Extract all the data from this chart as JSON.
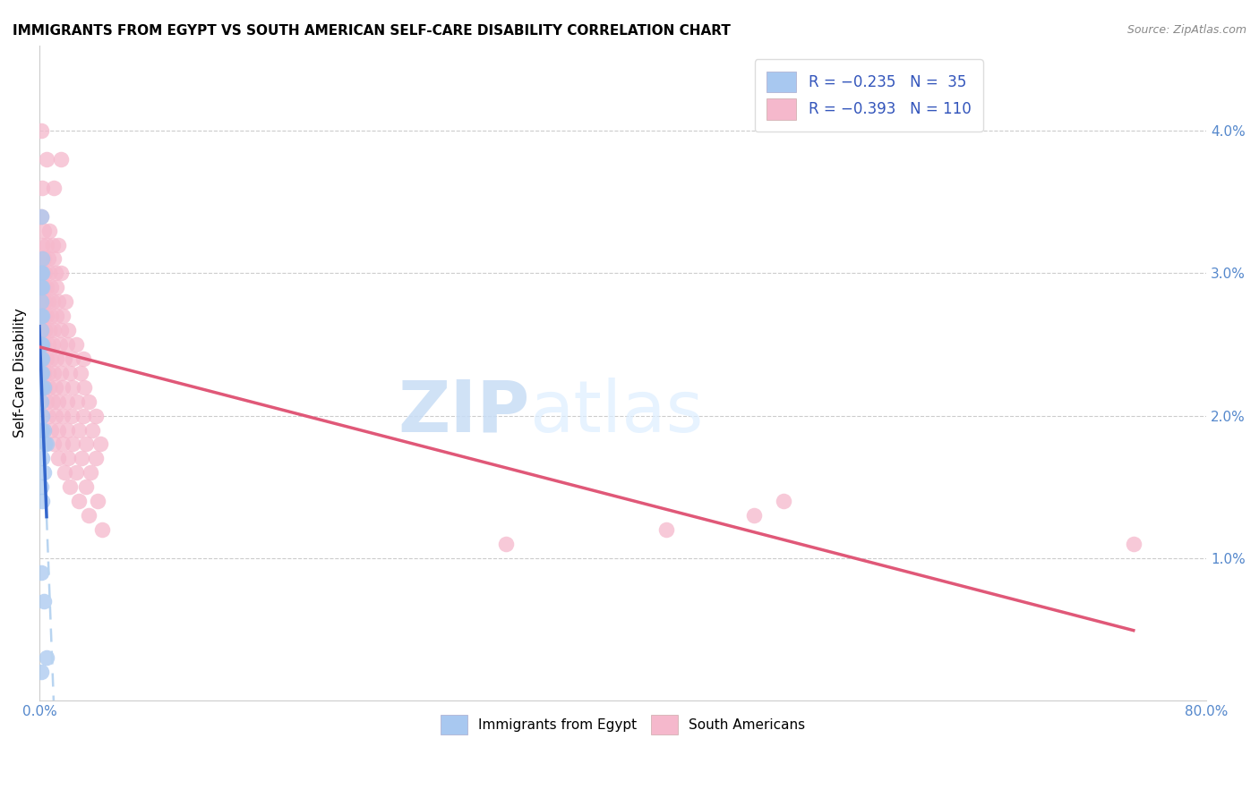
{
  "title": "IMMIGRANTS FROM EGYPT VS SOUTH AMERICAN SELF-CARE DISABILITY CORRELATION CHART",
  "source": "Source: ZipAtlas.com",
  "ylabel": "Self-Care Disability",
  "xlim": [
    0.0,
    0.8
  ],
  "ylim": [
    0.0,
    0.046
  ],
  "egypt_color": "#a8c8f0",
  "sa_color": "#f5b8cc",
  "egypt_line_color": "#3366cc",
  "sa_line_color": "#e05878",
  "dashed_color": "#b8d4f0",
  "legend_label_blue": "R = −0.235   N =  35",
  "legend_label_pink": "R = −0.393   N = 110",
  "watermark_zip": "ZIP",
  "watermark_atlas": "atlas",
  "egypt_scatter": [
    [
      0.001,
      0.034
    ],
    [
      0.002,
      0.031
    ],
    [
      0.002,
      0.03
    ],
    [
      0.001,
      0.03
    ],
    [
      0.001,
      0.029
    ],
    [
      0.002,
      0.029
    ],
    [
      0.001,
      0.028
    ],
    [
      0.001,
      0.027
    ],
    [
      0.002,
      0.027
    ],
    [
      0.001,
      0.026
    ],
    [
      0.001,
      0.025
    ],
    [
      0.002,
      0.025
    ],
    [
      0.001,
      0.025
    ],
    [
      0.002,
      0.024
    ],
    [
      0.001,
      0.024
    ],
    [
      0.002,
      0.023
    ],
    [
      0.001,
      0.023
    ],
    [
      0.001,
      0.022
    ],
    [
      0.002,
      0.022
    ],
    [
      0.003,
      0.022
    ],
    [
      0.001,
      0.021
    ],
    [
      0.002,
      0.02
    ],
    [
      0.001,
      0.019
    ],
    [
      0.002,
      0.019
    ],
    [
      0.003,
      0.019
    ],
    [
      0.004,
      0.018
    ],
    [
      0.005,
      0.018
    ],
    [
      0.002,
      0.017
    ],
    [
      0.003,
      0.016
    ],
    [
      0.001,
      0.015
    ],
    [
      0.002,
      0.014
    ],
    [
      0.001,
      0.009
    ],
    [
      0.003,
      0.007
    ],
    [
      0.005,
      0.003
    ],
    [
      0.001,
      0.002
    ]
  ],
  "sa_scatter": [
    [
      0.001,
      0.04
    ],
    [
      0.005,
      0.038
    ],
    [
      0.015,
      0.038
    ],
    [
      0.002,
      0.036
    ],
    [
      0.01,
      0.036
    ],
    [
      0.001,
      0.034
    ],
    [
      0.003,
      0.033
    ],
    [
      0.007,
      0.033
    ],
    [
      0.002,
      0.032
    ],
    [
      0.005,
      0.032
    ],
    [
      0.009,
      0.032
    ],
    [
      0.013,
      0.032
    ],
    [
      0.001,
      0.031
    ],
    [
      0.003,
      0.031
    ],
    [
      0.006,
      0.031
    ],
    [
      0.01,
      0.031
    ],
    [
      0.002,
      0.03
    ],
    [
      0.004,
      0.03
    ],
    [
      0.007,
      0.03
    ],
    [
      0.011,
      0.03
    ],
    [
      0.015,
      0.03
    ],
    [
      0.001,
      0.029
    ],
    [
      0.003,
      0.029
    ],
    [
      0.005,
      0.029
    ],
    [
      0.008,
      0.029
    ],
    [
      0.012,
      0.029
    ],
    [
      0.002,
      0.028
    ],
    [
      0.004,
      0.028
    ],
    [
      0.006,
      0.028
    ],
    [
      0.009,
      0.028
    ],
    [
      0.013,
      0.028
    ],
    [
      0.018,
      0.028
    ],
    [
      0.001,
      0.027
    ],
    [
      0.003,
      0.027
    ],
    [
      0.005,
      0.027
    ],
    [
      0.008,
      0.027
    ],
    [
      0.012,
      0.027
    ],
    [
      0.016,
      0.027
    ],
    [
      0.002,
      0.026
    ],
    [
      0.004,
      0.026
    ],
    [
      0.007,
      0.026
    ],
    [
      0.01,
      0.026
    ],
    [
      0.015,
      0.026
    ],
    [
      0.02,
      0.026
    ],
    [
      0.001,
      0.025
    ],
    [
      0.003,
      0.025
    ],
    [
      0.006,
      0.025
    ],
    [
      0.009,
      0.025
    ],
    [
      0.014,
      0.025
    ],
    [
      0.019,
      0.025
    ],
    [
      0.025,
      0.025
    ],
    [
      0.002,
      0.024
    ],
    [
      0.005,
      0.024
    ],
    [
      0.008,
      0.024
    ],
    [
      0.012,
      0.024
    ],
    [
      0.017,
      0.024
    ],
    [
      0.023,
      0.024
    ],
    [
      0.03,
      0.024
    ],
    [
      0.003,
      0.023
    ],
    [
      0.006,
      0.023
    ],
    [
      0.01,
      0.023
    ],
    [
      0.015,
      0.023
    ],
    [
      0.021,
      0.023
    ],
    [
      0.028,
      0.023
    ],
    [
      0.004,
      0.022
    ],
    [
      0.007,
      0.022
    ],
    [
      0.011,
      0.022
    ],
    [
      0.016,
      0.022
    ],
    [
      0.023,
      0.022
    ],
    [
      0.031,
      0.022
    ],
    [
      0.005,
      0.021
    ],
    [
      0.009,
      0.021
    ],
    [
      0.013,
      0.021
    ],
    [
      0.019,
      0.021
    ],
    [
      0.026,
      0.021
    ],
    [
      0.034,
      0.021
    ],
    [
      0.006,
      0.02
    ],
    [
      0.011,
      0.02
    ],
    [
      0.016,
      0.02
    ],
    [
      0.022,
      0.02
    ],
    [
      0.03,
      0.02
    ],
    [
      0.039,
      0.02
    ],
    [
      0.008,
      0.019
    ],
    [
      0.013,
      0.019
    ],
    [
      0.019,
      0.019
    ],
    [
      0.027,
      0.019
    ],
    [
      0.036,
      0.019
    ],
    [
      0.01,
      0.018
    ],
    [
      0.016,
      0.018
    ],
    [
      0.023,
      0.018
    ],
    [
      0.032,
      0.018
    ],
    [
      0.042,
      0.018
    ],
    [
      0.013,
      0.017
    ],
    [
      0.02,
      0.017
    ],
    [
      0.029,
      0.017
    ],
    [
      0.039,
      0.017
    ],
    [
      0.017,
      0.016
    ],
    [
      0.025,
      0.016
    ],
    [
      0.035,
      0.016
    ],
    [
      0.021,
      0.015
    ],
    [
      0.032,
      0.015
    ],
    [
      0.027,
      0.014
    ],
    [
      0.04,
      0.014
    ],
    [
      0.51,
      0.014
    ],
    [
      0.034,
      0.013
    ],
    [
      0.49,
      0.013
    ],
    [
      0.043,
      0.012
    ],
    [
      0.43,
      0.012
    ],
    [
      0.32,
      0.011
    ],
    [
      0.75,
      0.011
    ]
  ]
}
